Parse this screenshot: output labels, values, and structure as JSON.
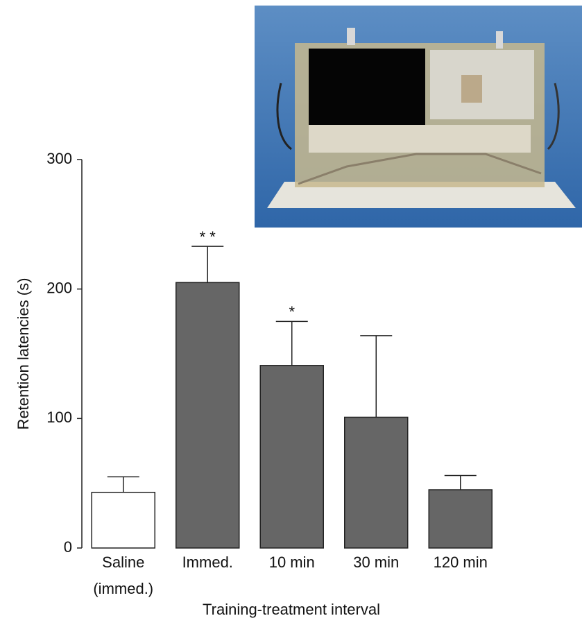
{
  "chart_data": {
    "type": "bar",
    "y_label": "Retention latencies (s)",
    "x_label": "Training-treatment interval",
    "categories": [
      [
        "Saline",
        "(immed.)"
      ],
      [
        "Immed."
      ],
      [
        "10 min"
      ],
      [
        "30 min"
      ],
      [
        "120 min"
      ]
    ],
    "values": [
      43,
      205,
      141,
      101,
      45
    ],
    "errors": [
      12,
      28,
      34,
      63,
      11
    ],
    "colors": [
      "#ffffff",
      "#666666",
      "#666666",
      "#666666",
      "#666666"
    ],
    "annotations": [
      {
        "text": "* *",
        "category": 1
      },
      {
        "text": "*",
        "category": 2
      }
    ],
    "ylim": [
      0,
      300
    ],
    "yticks": [
      0,
      100,
      200,
      300
    ]
  }
}
